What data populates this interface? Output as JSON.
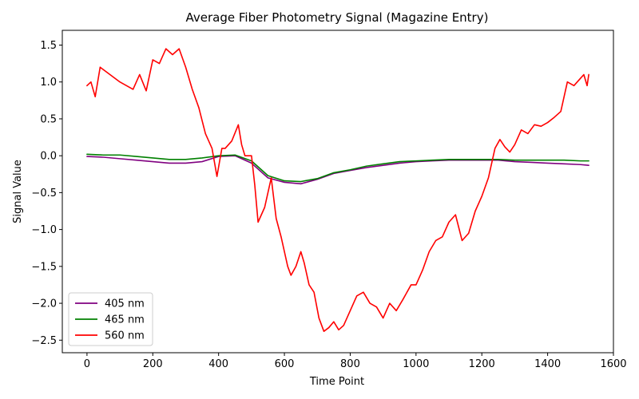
{
  "chart_data": {
    "type": "line",
    "title": "Average Fiber Photometry Signal (Magazine Entry)",
    "xlabel": "Time Point",
    "ylabel": "Signal Value",
    "xlim": [
      -75,
      1600
    ],
    "ylim": [
      -2.67,
      1.7
    ],
    "xticks": [
      0,
      200,
      400,
      600,
      800,
      1000,
      1200,
      1400,
      1600
    ],
    "yticks": [
      -2.5,
      -2.0,
      -1.5,
      -1.0,
      -0.5,
      0.0,
      0.5,
      1.0,
      1.5
    ],
    "grid": false,
    "legend_position": "lower-left",
    "series": [
      {
        "name": "405 nm",
        "color": "#800080",
        "x": [
          0,
          50,
          100,
          150,
          200,
          250,
          300,
          350,
          400,
          450,
          500,
          550,
          600,
          650,
          700,
          750,
          800,
          850,
          900,
          950,
          1000,
          1050,
          1100,
          1150,
          1200,
          1250,
          1300,
          1350,
          1400,
          1450,
          1500,
          1525
        ],
        "y": [
          -0.01,
          -0.02,
          -0.04,
          -0.06,
          -0.08,
          -0.1,
          -0.1,
          -0.08,
          -0.01,
          0.0,
          -0.1,
          -0.3,
          -0.36,
          -0.38,
          -0.32,
          -0.24,
          -0.2,
          -0.16,
          -0.13,
          -0.1,
          -0.08,
          -0.07,
          -0.06,
          -0.06,
          -0.06,
          -0.06,
          -0.08,
          -0.09,
          -0.1,
          -0.11,
          -0.12,
          -0.13
        ]
      },
      {
        "name": "465 nm",
        "color": "#008000",
        "x": [
          0,
          50,
          100,
          150,
          200,
          250,
          300,
          350,
          400,
          450,
          500,
          550,
          600,
          650,
          700,
          750,
          800,
          850,
          900,
          950,
          1000,
          1050,
          1100,
          1150,
          1200,
          1250,
          1300,
          1350,
          1400,
          1450,
          1500,
          1525
        ],
        "y": [
          0.02,
          0.01,
          0.01,
          -0.01,
          -0.03,
          -0.05,
          -0.05,
          -0.03,
          0.0,
          0.01,
          -0.07,
          -0.27,
          -0.34,
          -0.35,
          -0.31,
          -0.23,
          -0.19,
          -0.14,
          -0.11,
          -0.08,
          -0.07,
          -0.06,
          -0.05,
          -0.05,
          -0.05,
          -0.05,
          -0.06,
          -0.06,
          -0.06,
          -0.06,
          -0.07,
          -0.07
        ]
      },
      {
        "name": "560 nm",
        "color": "#ff0000",
        "x": [
          0,
          12,
          25,
          40,
          55,
          70,
          85,
          100,
          120,
          140,
          160,
          180,
          200,
          220,
          240,
          260,
          280,
          300,
          320,
          340,
          360,
          380,
          395,
          410,
          420,
          440,
          460,
          470,
          480,
          500,
          510,
          520,
          540,
          560,
          575,
          590,
          600,
          610,
          620,
          635,
          650,
          660,
          675,
          690,
          705,
          720,
          735,
          750,
          765,
          780,
          800,
          820,
          840,
          860,
          880,
          900,
          920,
          940,
          960,
          985,
          1000,
          1020,
          1040,
          1060,
          1080,
          1100,
          1120,
          1140,
          1160,
          1180,
          1200,
          1220,
          1240,
          1255,
          1270,
          1285,
          1300,
          1320,
          1340,
          1360,
          1380,
          1400,
          1420,
          1440,
          1460,
          1480,
          1500,
          1510,
          1520,
          1525
        ],
        "y": [
          0.95,
          1.0,
          0.8,
          1.2,
          1.15,
          1.1,
          1.05,
          1.0,
          0.95,
          0.9,
          1.1,
          0.88,
          1.3,
          1.25,
          1.45,
          1.37,
          1.45,
          1.2,
          0.9,
          0.65,
          0.3,
          0.1,
          -0.28,
          0.1,
          0.1,
          0.2,
          0.42,
          0.15,
          0.0,
          0.0,
          -0.4,
          -0.9,
          -0.7,
          -0.3,
          -0.85,
          -1.1,
          -1.3,
          -1.5,
          -1.62,
          -1.5,
          -1.3,
          -1.45,
          -1.75,
          -1.85,
          -2.2,
          -2.38,
          -2.33,
          -2.25,
          -2.36,
          -2.3,
          -2.1,
          -1.9,
          -1.85,
          -2.0,
          -2.05,
          -2.2,
          -2.0,
          -2.1,
          -1.95,
          -1.75,
          -1.75,
          -1.55,
          -1.3,
          -1.15,
          -1.1,
          -0.9,
          -0.8,
          -1.15,
          -1.05,
          -0.75,
          -0.55,
          -0.3,
          0.1,
          0.22,
          0.12,
          0.05,
          0.15,
          0.35,
          0.3,
          0.42,
          0.4,
          0.45,
          0.52,
          0.6,
          1.0,
          0.95,
          1.05,
          1.1,
          0.95,
          1.1
        ]
      }
    ]
  }
}
